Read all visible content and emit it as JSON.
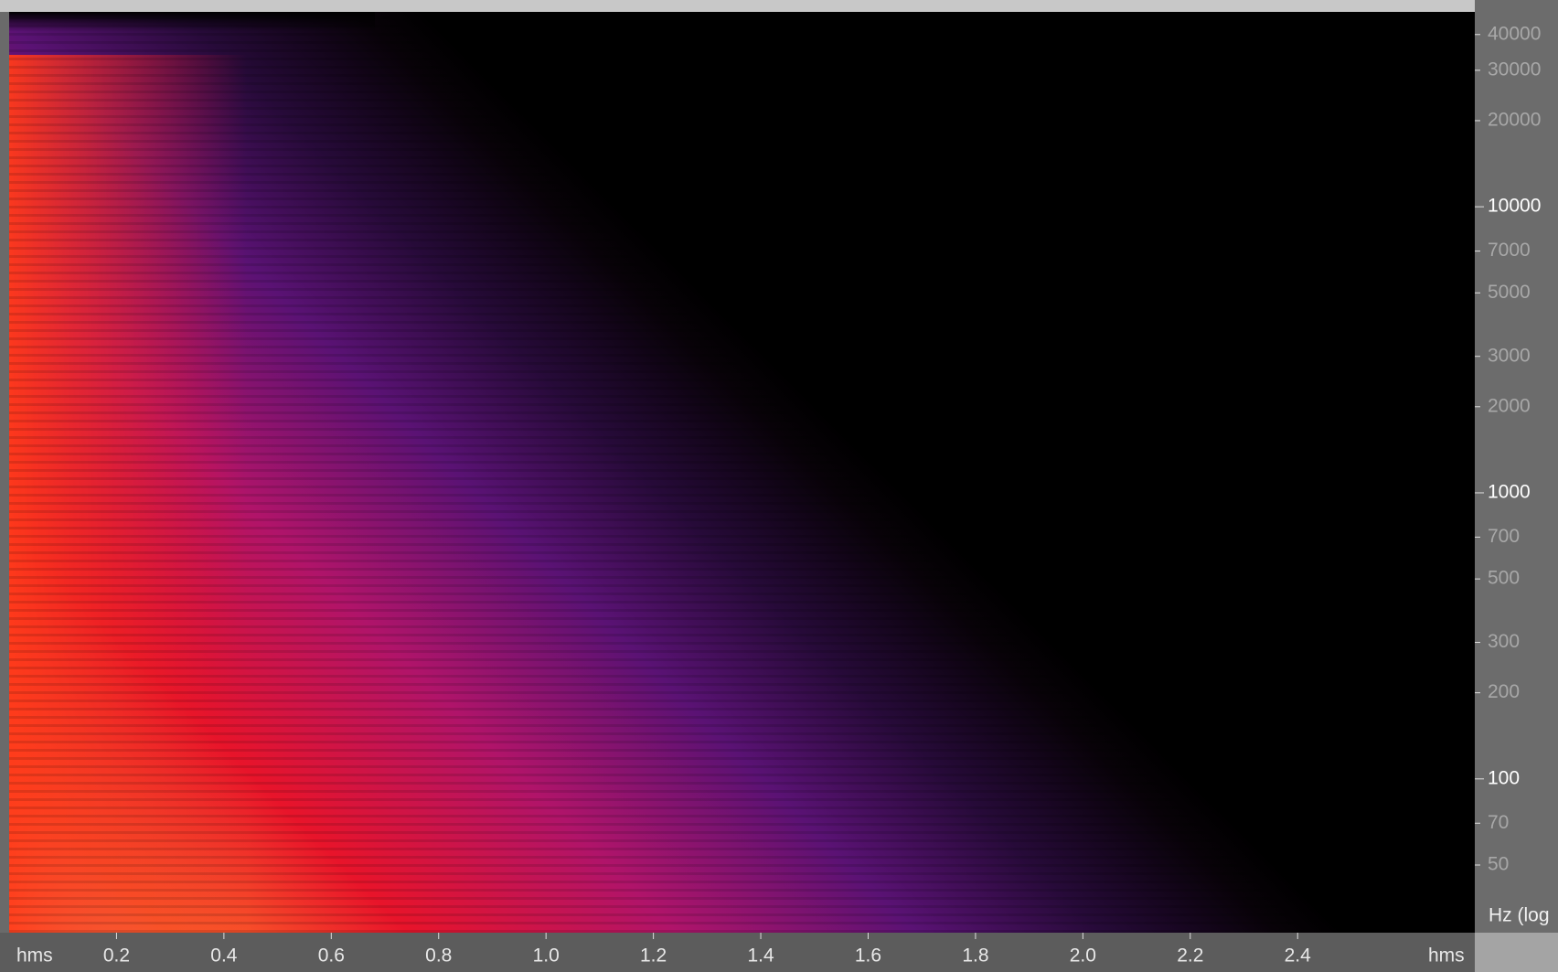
{
  "chart_data": {
    "type": "spectrogram",
    "y_label": "Hz (log",
    "x_unit": "hms",
    "ylog": true,
    "ylim": [
      29,
      48000
    ],
    "yticks": [
      50,
      70,
      100,
      200,
      300,
      500,
      700,
      1000,
      2000,
      3000,
      5000,
      7000,
      10000,
      20000,
      30000,
      40000
    ],
    "xlim": [
      0,
      2.73
    ],
    "xticks": [
      0.2,
      0.4,
      0.6,
      0.8,
      {
        "value": 1,
        "label": "1.0"
      },
      1.2,
      1.4,
      1.6,
      1.8,
      {
        "value": 2,
        "label": "2.0"
      },
      2.2,
      2.4
    ]
  }
}
